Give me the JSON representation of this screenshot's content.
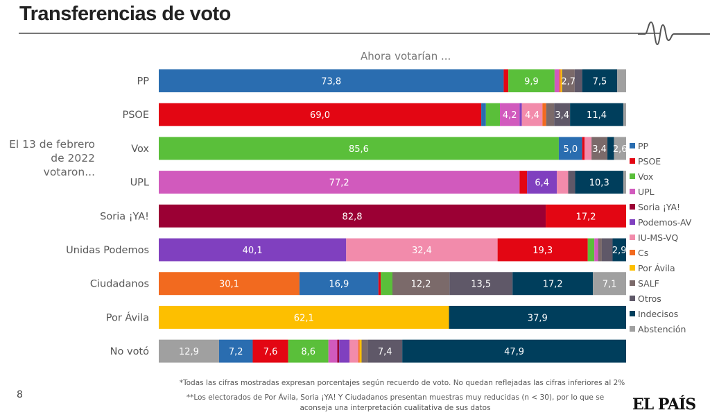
{
  "header": {
    "title": "Transferencias de voto"
  },
  "page_number": "8",
  "logo_text": "EL PAÍS",
  "footnotes": [
    "*Todas las cifras mostradas expresan porcentajes según recuerdo de voto. No quedan reflejadas las cifras inferiores al 2%",
    "**Los electorados de Por Ávila, Soria ¡YA! Y Ciudadanos presentan muestras muy reducidas (n < 30), por lo que se aconseja una interpretación cualitativa de sus datos"
  ],
  "chart_data": {
    "type": "bar",
    "orientation": "horizontal-stacked-100",
    "title": "",
    "xlabel": "Ahora votarían ...",
    "ylabel": "El 13 de febrero de 2022 votaron...",
    "xlim": [
      0,
      100
    ],
    "legend_position": "right",
    "legend": [
      "PP",
      "PSOE",
      "Vox",
      "UPL",
      "Soria ¡YA!",
      "Podemos-AV",
      "IU-MS-VQ",
      "Cs",
      "Por Ávila",
      "SALF",
      "Otros",
      "Indecisos",
      "Abstención"
    ],
    "colors": {
      "PP": "#2a6db0",
      "PSOE": "#e30613",
      "Vox": "#5abf3a",
      "UPL": "#d15abd",
      "Soria ¡YA!": "#9b0034",
      "Podemos-AV": "#8040bf",
      "IU-MS-VQ": "#f28bab",
      "Cs": "#f26a1f",
      "Por Ávila": "#fdbf00",
      "SALF": "#7b6a6a",
      "Otros": "#5f5868",
      "Indecisos": "#003e5c",
      "Abstención": "#a0a0a0"
    },
    "rows": [
      {
        "category": "PP",
        "segments": [
          [
            "PP",
            73.8,
            "73,8"
          ],
          [
            "PSOE",
            1.0,
            ""
          ],
          [
            "Vox",
            9.9,
            "9,9"
          ],
          [
            "UPL",
            1.0,
            ""
          ],
          [
            "Cs",
            0.3,
            ""
          ],
          [
            "Por Ávila",
            0.3,
            ""
          ],
          [
            "SALF",
            2.7,
            "2,7"
          ],
          [
            "Otros",
            1.6,
            ""
          ],
          [
            "Indecisos",
            7.5,
            "7,5"
          ],
          [
            "Abstención",
            1.9,
            ""
          ]
        ]
      },
      {
        "category": "PSOE",
        "segments": [
          [
            "PSOE",
            69.0,
            "69,0"
          ],
          [
            "PP",
            1.0,
            ""
          ],
          [
            "Vox",
            3.0,
            ""
          ],
          [
            "UPL",
            4.2,
            "4,2"
          ],
          [
            "Podemos-AV",
            0.5,
            ""
          ],
          [
            "IU-MS-VQ",
            4.4,
            "4,4"
          ],
          [
            "Cs",
            0.8,
            ""
          ],
          [
            "SALF",
            1.7,
            ""
          ],
          [
            "Otros",
            3.4,
            "3,4"
          ],
          [
            "Indecisos",
            11.4,
            "11,4"
          ],
          [
            "Abstención",
            0.6,
            ""
          ]
        ]
      },
      {
        "category": "Vox",
        "segments": [
          [
            "Vox",
            85.6,
            "85,6"
          ],
          [
            "PP",
            5.0,
            "5,0"
          ],
          [
            "PSOE",
            0.5,
            ""
          ],
          [
            "IU-MS-VQ",
            1.5,
            ""
          ],
          [
            "SALF",
            3.4,
            "3,4"
          ],
          [
            "Indecisos",
            1.4,
            ""
          ],
          [
            "Abstención",
            2.6,
            "2,6"
          ]
        ]
      },
      {
        "category": "UPL",
        "segments": [
          [
            "UPL",
            77.2,
            "77,2"
          ],
          [
            "PSOE",
            1.6,
            ""
          ],
          [
            "Podemos-AV",
            6.4,
            "6,4"
          ],
          [
            "IU-MS-VQ",
            2.4,
            ""
          ],
          [
            "Otros",
            1.5,
            ""
          ],
          [
            "Indecisos",
            10.3,
            "10,3"
          ],
          [
            "Abstención",
            0.6,
            ""
          ]
        ]
      },
      {
        "category": "Soria ¡YA!",
        "segments": [
          [
            "Soria ¡YA!",
            82.8,
            "82,8"
          ],
          [
            "PSOE",
            17.2,
            "17,2"
          ]
        ]
      },
      {
        "category": "Unidas Podemos",
        "segments": [
          [
            "Podemos-AV",
            40.1,
            "40,1"
          ],
          [
            "IU-MS-VQ",
            32.4,
            "32,4"
          ],
          [
            "PSOE",
            19.3,
            "19,3"
          ],
          [
            "Vox",
            1.4,
            ""
          ],
          [
            "UPL",
            0.8,
            ""
          ],
          [
            "SALF",
            0.8,
            ""
          ],
          [
            "Otros",
            2.3,
            ""
          ],
          [
            "Indecisos",
            2.9,
            "2,9"
          ]
        ]
      },
      {
        "category": "Ciudadanos",
        "segments": [
          [
            "Cs",
            30.1,
            "30,1"
          ],
          [
            "PP",
            16.9,
            "16,9"
          ],
          [
            "PSOE",
            0.5,
            ""
          ],
          [
            "Vox",
            2.5,
            ""
          ],
          [
            "SALF",
            12.2,
            "12,2"
          ],
          [
            "Otros",
            13.5,
            "13,5"
          ],
          [
            "Indecisos",
            17.2,
            "17,2"
          ],
          [
            "Abstención",
            7.1,
            "7,1"
          ]
        ]
      },
      {
        "category": "Por Ávila",
        "segments": [
          [
            "Por Ávila",
            62.1,
            "62,1"
          ],
          [
            "Indecisos",
            37.9,
            "37,9"
          ]
        ]
      },
      {
        "category": "No votó",
        "segments": [
          [
            "Abstención",
            12.9,
            "12,9"
          ],
          [
            "PP",
            7.2,
            "7,2"
          ],
          [
            "PSOE",
            7.6,
            "7,6"
          ],
          [
            "Vox",
            8.6,
            "8,6"
          ],
          [
            "UPL",
            1.9,
            ""
          ],
          [
            "Soria ¡YA!",
            0.4,
            ""
          ],
          [
            "Podemos-AV",
            2.2,
            ""
          ],
          [
            "IU-MS-VQ",
            1.9,
            ""
          ],
          [
            "Cs",
            0.3,
            ""
          ],
          [
            "Por Ávila",
            0.4,
            ""
          ],
          [
            "SALF",
            1.3,
            ""
          ],
          [
            "Otros",
            7.4,
            "7,4"
          ],
          [
            "Indecisos",
            47.9,
            "47,9"
          ]
        ]
      }
    ]
  }
}
